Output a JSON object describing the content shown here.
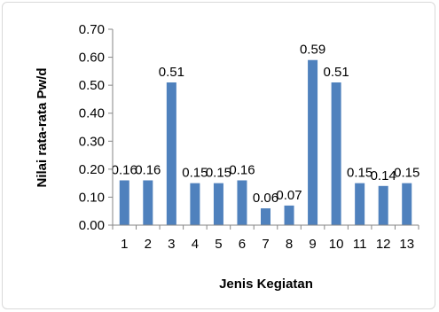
{
  "chart_data": {
    "type": "bar",
    "title": "",
    "xlabel": "Jenis Kegiatan",
    "ylabel": "Nilai rata-rata Pw/d",
    "categories": [
      "1",
      "2",
      "3",
      "4",
      "5",
      "6",
      "7",
      "8",
      "9",
      "10",
      "11",
      "12",
      "13"
    ],
    "values": [
      0.16,
      0.16,
      0.51,
      0.15,
      0.15,
      0.16,
      0.06,
      0.07,
      0.59,
      0.51,
      0.15,
      0.14,
      0.15
    ],
    "data_labels": [
      "0.16",
      "0.16",
      "0.51",
      "0.15",
      "0.15",
      "0.16",
      "0.06",
      "0.07",
      "0.59",
      "0.51",
      "0.15",
      "0.14",
      "0.15"
    ],
    "ylim": [
      0,
      0.7
    ],
    "yticks": [
      "0.00",
      "0.10",
      "0.20",
      "0.30",
      "0.40",
      "0.50",
      "0.60",
      "0.70"
    ],
    "bar_color": "#4f81bd",
    "grid": false,
    "legend": "none"
  }
}
